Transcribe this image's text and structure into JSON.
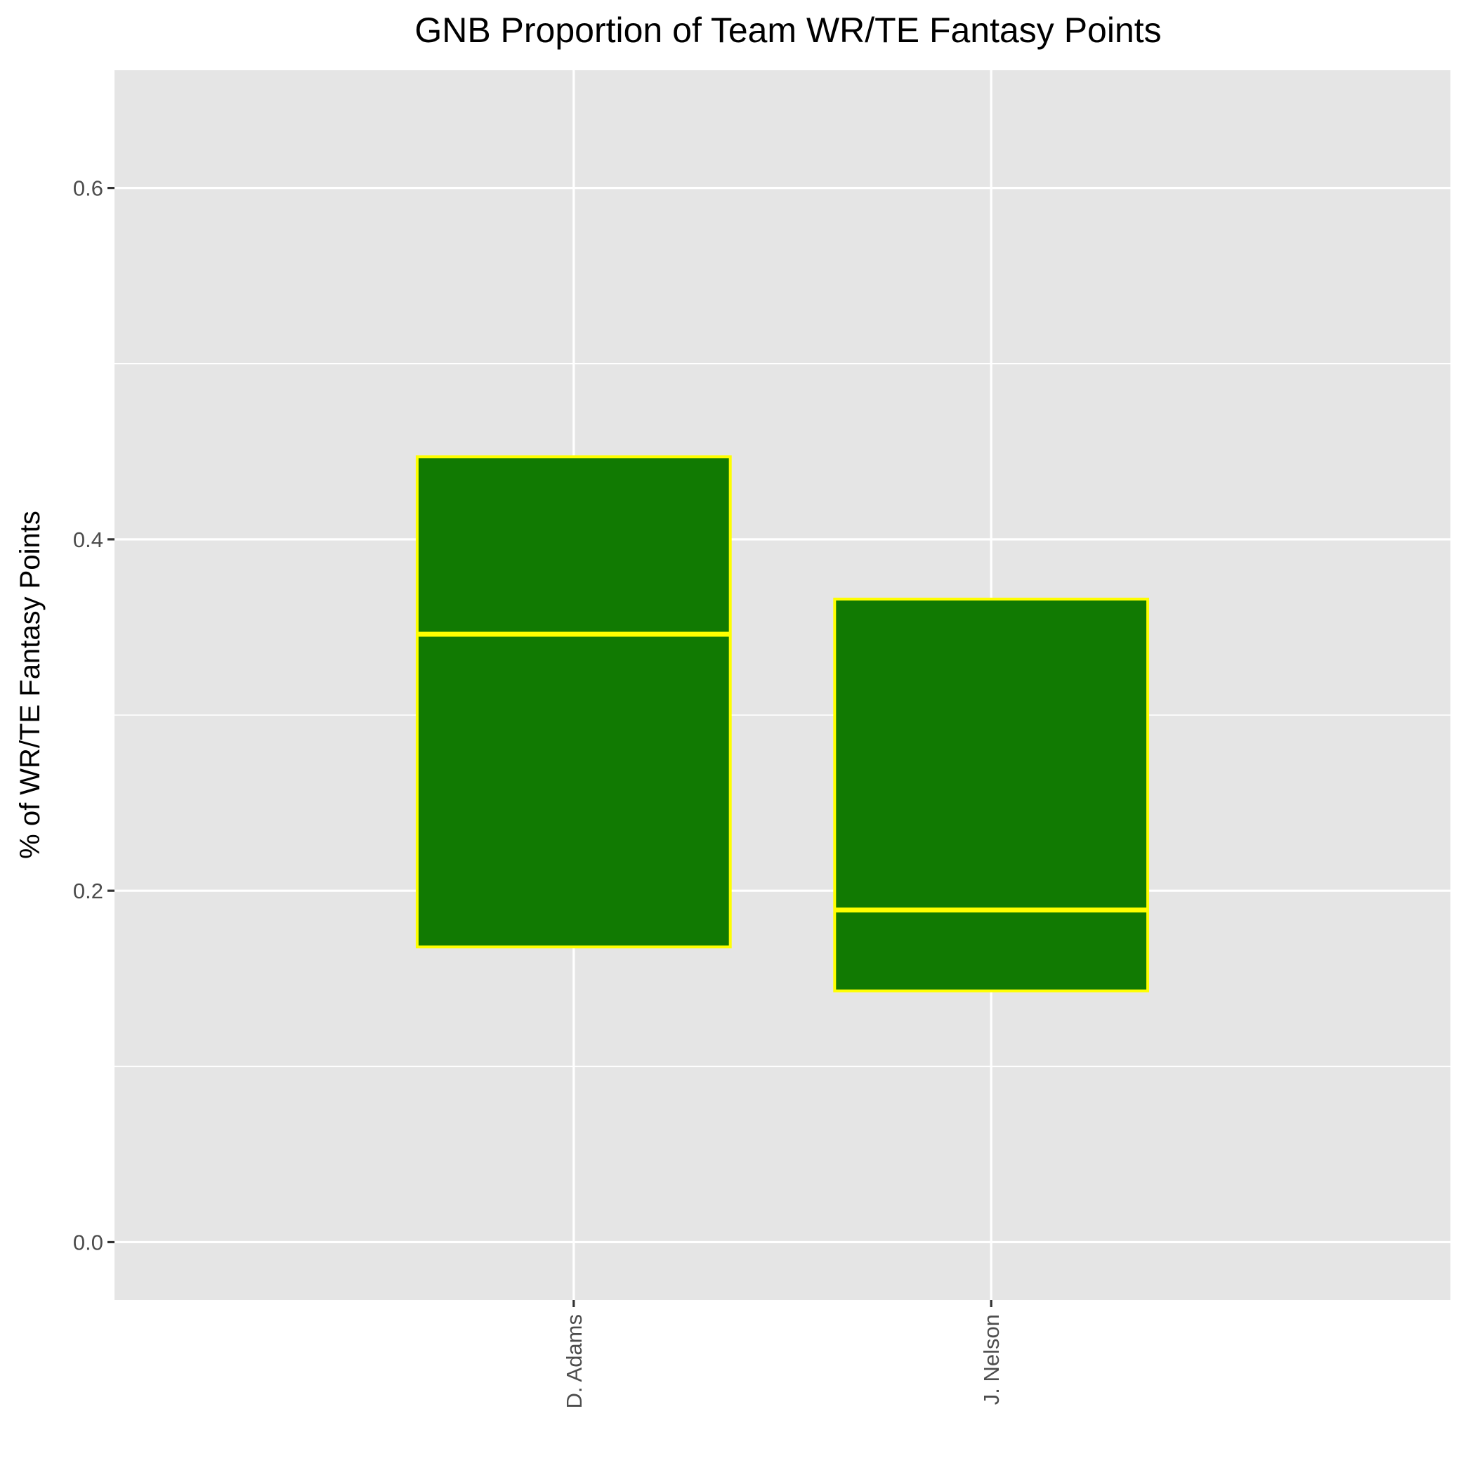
{
  "chart_data": {
    "type": "boxplot",
    "title": "GNB Proportion of Team WR/TE Fantasy Points",
    "xlabel": "",
    "ylabel": "% of WR/TE Fantasy Points",
    "ylim": [
      -0.033,
      0.667
    ],
    "yticks": [
      0.0,
      0.2,
      0.4,
      0.6
    ],
    "ytick_labels": [
      "0.0",
      "0.2",
      "0.4",
      "0.6"
    ],
    "y_minor_ticks": [
      0.1,
      0.3,
      0.5
    ],
    "categories": [
      "D. Adams",
      "J. Nelson"
    ],
    "boxes": [
      {
        "category": "D. Adams",
        "q1": 0.168,
        "median": 0.346,
        "q3": 0.447
      },
      {
        "category": "J. Nelson",
        "q1": 0.143,
        "median": 0.189,
        "q3": 0.366
      }
    ],
    "x_tick_label_rotation": 90,
    "grid": true,
    "colors": {
      "panel_background": "#e5e5e5",
      "grid": "#ffffff",
      "box_fill": "#117a02",
      "box_outline": "#ffff00"
    }
  }
}
